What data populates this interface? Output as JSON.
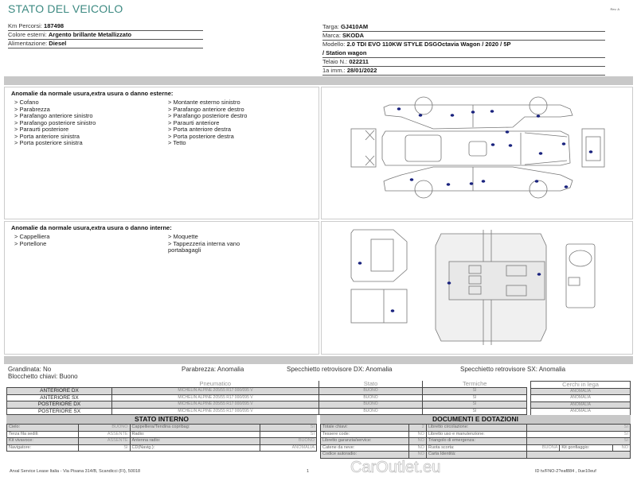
{
  "header": {
    "title": "STATO DEL VEICOLO",
    "rev": "Rev. A"
  },
  "vehicle_left": [
    {
      "label": "Km Percorsi:",
      "value": "187498"
    },
    {
      "label": "Colore esterni:",
      "value": "Argento brillante Metallizzato"
    },
    {
      "label": "Alimentazione:",
      "value": "Diesel"
    }
  ],
  "vehicle_right": {
    "targa": {
      "label": "Targa:",
      "value": "GJ410AM"
    },
    "marca": {
      "label": "Marca:",
      "value": "SKODA"
    },
    "modello": {
      "label": "Modello:",
      "value": "2.0 TDI EVO 110KW STYLE DSGOctavia Wagon / 2020 / 5P",
      "value2": "/ Station wagon"
    },
    "telaio": {
      "label": "Telaio N.:",
      "value": "022211"
    },
    "imm": {
      "label": "1a imm.:",
      "value": "28/01/2022"
    }
  },
  "exterior": {
    "title": "Anomalie da normale usura,extra usura o danno esterne:",
    "col1": [
      "> Cofano",
      "> Parabrezza",
      "> Parafango anteriore sinistro",
      "> Parafango posteriore sinistro",
      "> Paraurti posteriore",
      "> Porta anteriore sinistra",
      "> Porta posteriore sinistra"
    ],
    "col2": [
      "> Montante esterno sinistro",
      "> Parafango anteriore destro",
      "> Parafango posteriore destro",
      "> Paraurti anteriore",
      "> Porta anteriore destra",
      "> Porta posteriore destra",
      "> Tetto"
    ]
  },
  "interior": {
    "title": "Anomalie da normale usura,extra usura o danno interne:",
    "col1": [
      "> Cappelliera",
      "> Portellone"
    ],
    "col2": [
      "> Moquette",
      "> Tappezzeria interna vano",
      "portabagagli"
    ]
  },
  "damage_marker_color": "#1a237e",
  "summary": {
    "grandinata": "Grandinata: No",
    "blocchetto": "Blocchetto chiavi: Buono",
    "parabrezza": "Parabrezza: Anomalia",
    "spec_dx": "Specchietto retrovisore DX: Anomalia",
    "spec_sx": "Specchietto retrovisore SX: Anomalia"
  },
  "tires": {
    "headers": [
      "Pneumatico",
      "Stato",
      "Termiche"
    ],
    "cerchi_header": "Cerchi in lega",
    "rows": [
      {
        "pos": "ANTERIORE DX",
        "tire": "MICHELIN ALPINE 205/55 R17 000/095 V",
        "stato": "BUONO",
        "termiche": "SI",
        "cerchi": "ANOMALIA"
      },
      {
        "pos": "ANTERIORE SX",
        "tire": "MICHELIN ALPINE 205/55 R17 000/095 V",
        "stato": "BUONO",
        "termiche": "SI",
        "cerchi": "ANOMALIA"
      },
      {
        "pos": "POSTERIORE DX",
        "tire": "MICHELIN ALPINE 205/55 R17 000/095 V",
        "stato": "BUONO",
        "termiche": "SI",
        "cerchi": "ANOMALIA"
      },
      {
        "pos": "POSTERIORE SX",
        "tire": "MICHELIN ALPINE 205/55 R17 000/095 V",
        "stato": "BUONO",
        "termiche": "SI",
        "cerchi": "ANOMALIA"
      }
    ]
  },
  "stato_interno": {
    "title": "STATO INTERNO",
    "rows": [
      [
        "Cielo:",
        "BUONO",
        "Cappelliera/Tendina copribag:",
        "SI"
      ],
      [
        "Terza fila sedili:",
        "ASSENTE",
        "Radio:",
        "SI"
      ],
      [
        "Kit vivavoce:",
        "ASSENTE",
        "Antenna radio:",
        "BUONO"
      ],
      [
        "Navigatore:",
        "SI",
        "CD(Navig.):",
        "ANOMALIA"
      ]
    ]
  },
  "documenti": {
    "title": "DOCUMENTI E DOTAZIONI",
    "rows": [
      [
        "Totale chiavi:",
        "2",
        "Libretto circolazione:",
        "SI"
      ],
      [
        "Tessere code:",
        "NO",
        "Libretto uso e manutenzione:",
        "SI"
      ],
      [
        "Libretto garanzia/service:",
        "NO",
        "Triangolo di emergenza:",
        "SI"
      ],
      [
        "Catene da neve:",
        "NO",
        "Ruota scorta:",
        "BUONA"
      ],
      [
        "Codice autoradio:",
        "NO",
        "Carta Identità:",
        ""
      ]
    ],
    "kit": {
      "label": "Kit gonfiaggio:",
      "value": "NO"
    }
  },
  "footer": {
    "address": "Arval Service Lease Italia - Via Pisana 314/B, Scandicci (FI), 50018",
    "page": "1",
    "doc_id": "ID tv/FNO-2?eaf884 , 0ue10euf",
    "watermark": "CarOutlet.eu"
  }
}
